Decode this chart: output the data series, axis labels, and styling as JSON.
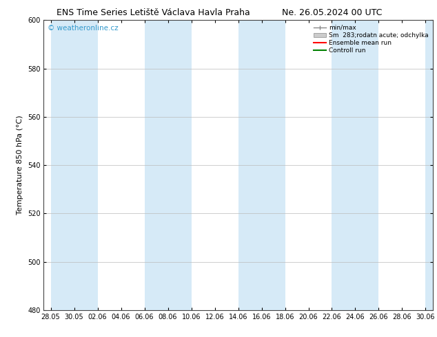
{
  "title_left": "ENS Time Series Letiště Václava Havla Praha",
  "title_right": "Ne. 26.05.2024 00 UTC",
  "ylabel": "Temperature 850 hPa (°C)",
  "ylim": [
    480,
    600
  ],
  "yticks": [
    480,
    500,
    520,
    540,
    560,
    580,
    600
  ],
  "xlabels": [
    "28.05",
    "30.05",
    "02.06",
    "04.06",
    "06.06",
    "08.06",
    "10.06",
    "12.06",
    "14.06",
    "16.06",
    "18.06",
    "20.06",
    "22.06",
    "24.06",
    "26.06",
    "28.06",
    "30.06"
  ],
  "watermark": "© weatheronline.cz",
  "legend_entries": [
    "min/max",
    "Sm  283;rodatn acute; odchylka",
    "Ensemble mean run",
    "Controll run"
  ],
  "ensemble_mean_color": "#ff0000",
  "control_run_color": "#008000",
  "band_color": "#d6eaf7",
  "background_color": "#ffffff",
  "fig_width": 6.34,
  "fig_height": 4.9,
  "dpi": 100,
  "title_fontsize": 9,
  "tick_fontsize": 7,
  "ylabel_fontsize": 8
}
